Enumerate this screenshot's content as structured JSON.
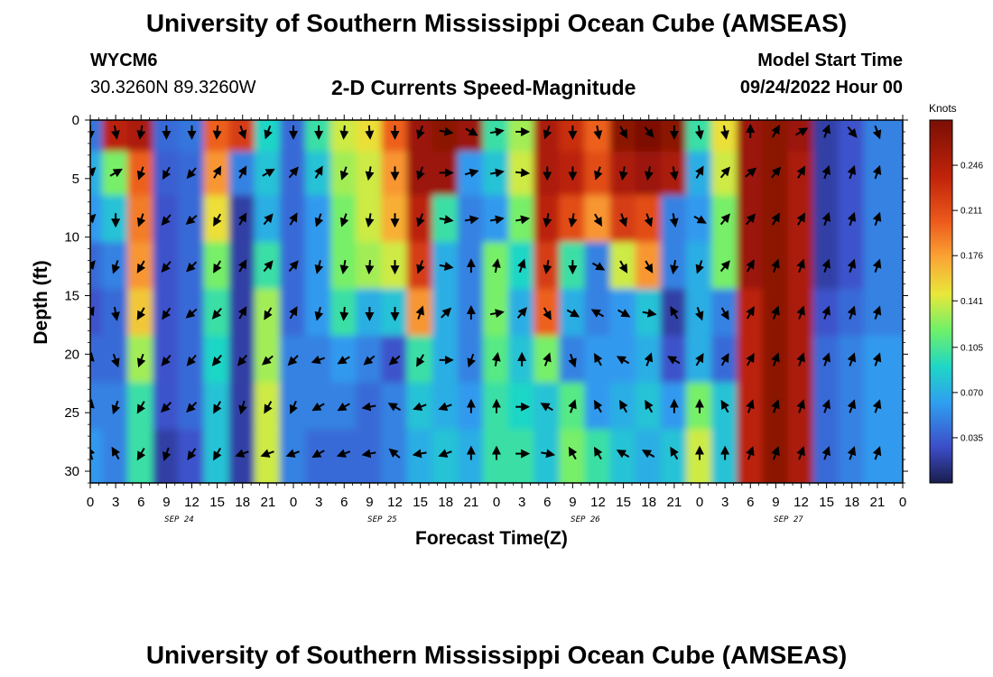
{
  "page": {
    "title_top": "University of Southern Mississippi Ocean Cube (AMSEAS)",
    "title_bottom": "University of Southern Mississippi Ocean Cube (AMSEAS)",
    "station_id": "WYCM6",
    "coords": "30.3260N  89.3260W",
    "model_start_label": "Model Start Time",
    "model_start_value": "09/24/2022 Hour 00"
  },
  "colorbar": {
    "unit": "Knots",
    "ticks": [
      "0.246",
      "0.211",
      "0.176",
      "0.141",
      "0.105",
      "0.070",
      "0.035"
    ],
    "tick_values": [
      0.246,
      0.211,
      0.176,
      0.141,
      0.105,
      0.07,
      0.035
    ],
    "range": [
      0.0,
      0.281
    ]
  },
  "chart_data": {
    "type": "heatmap",
    "title": "2-D Currents Speed-Magnitude",
    "xlabel": "Forecast Time(Z)",
    "ylabel": "Depth (ft)",
    "xlim": [
      0,
      96
    ],
    "ylim": [
      0,
      31
    ],
    "y_inverted": true,
    "x_tick_labels": [
      "0",
      "3",
      "6",
      "9",
      "12",
      "15",
      "18",
      "21",
      "0",
      "3",
      "6",
      "9",
      "12",
      "15",
      "18",
      "21",
      "0",
      "3",
      "6",
      "9",
      "12",
      "15",
      "18",
      "21",
      "0",
      "3",
      "6",
      "9",
      "12",
      "15",
      "18",
      "21",
      "0"
    ],
    "x_tick_hours": [
      0,
      3,
      6,
      9,
      12,
      15,
      18,
      21,
      24,
      27,
      30,
      33,
      36,
      39,
      42,
      45,
      48,
      51,
      54,
      57,
      60,
      63,
      66,
      69,
      72,
      75,
      78,
      81,
      84,
      87,
      90,
      93,
      96
    ],
    "y_tick_labels": [
      "0",
      "5",
      "10",
      "15",
      "20",
      "25",
      "30"
    ],
    "y_tick_values": [
      0,
      5,
      10,
      15,
      20,
      25,
      30
    ],
    "date_labels": [
      {
        "text": "SEP 24",
        "hour": 10.5
      },
      {
        "text": "SEP 25",
        "hour": 34.5
      },
      {
        "text": "SEP 26",
        "hour": 58.5
      },
      {
        "text": "SEP 27",
        "hour": 82.5
      }
    ],
    "depths_ft": [
      1,
      4.5,
      8.5,
      12.5,
      16.5,
      20.5,
      24.5,
      28.5
    ],
    "hours": [
      0,
      3,
      6,
      9,
      12,
      15,
      18,
      21,
      24,
      27,
      30,
      33,
      36,
      39,
      42,
      45,
      48,
      51,
      54,
      57,
      60,
      63,
      66,
      69,
      72,
      75,
      78,
      81,
      84,
      87,
      90,
      93
    ],
    "speed_knots": [
      [
        0.045,
        0.24,
        0.25,
        0.04,
        0.045,
        0.2,
        0.22,
        0.09,
        0.04,
        0.1,
        0.14,
        0.15,
        0.2,
        0.26,
        0.27,
        0.26,
        0.1,
        0.13,
        0.25,
        0.23,
        0.2,
        0.27,
        0.28,
        0.27,
        0.1,
        0.15,
        0.26,
        0.27,
        0.26,
        0.02,
        0.03,
        0.05
      ],
      [
        0.07,
        0.12,
        0.2,
        0.035,
        0.04,
        0.18,
        0.05,
        0.08,
        0.04,
        0.08,
        0.13,
        0.14,
        0.18,
        0.26,
        0.26,
        0.06,
        0.08,
        0.14,
        0.25,
        0.24,
        0.21,
        0.25,
        0.26,
        0.25,
        0.07,
        0.14,
        0.26,
        0.27,
        0.25,
        0.02,
        0.03,
        0.05
      ],
      [
        0.06,
        0.08,
        0.19,
        0.03,
        0.04,
        0.15,
        0.02,
        0.07,
        0.04,
        0.06,
        0.12,
        0.14,
        0.17,
        0.24,
        0.1,
        0.05,
        0.06,
        0.12,
        0.24,
        0.21,
        0.18,
        0.22,
        0.21,
        0.05,
        0.06,
        0.12,
        0.26,
        0.27,
        0.25,
        0.02,
        0.03,
        0.05
      ],
      [
        0.04,
        0.05,
        0.18,
        0.03,
        0.04,
        0.12,
        0.02,
        0.1,
        0.04,
        0.06,
        0.12,
        0.13,
        0.14,
        0.22,
        0.07,
        0.05,
        0.12,
        0.09,
        0.22,
        0.1,
        0.05,
        0.14,
        0.18,
        0.05,
        0.07,
        0.12,
        0.26,
        0.27,
        0.25,
        0.02,
        0.03,
        0.05
      ],
      [
        0.03,
        0.04,
        0.16,
        0.03,
        0.04,
        0.1,
        0.02,
        0.13,
        0.04,
        0.06,
        0.1,
        0.07,
        0.08,
        0.18,
        0.07,
        0.05,
        0.12,
        0.07,
        0.2,
        0.07,
        0.05,
        0.06,
        0.08,
        0.02,
        0.07,
        0.05,
        0.24,
        0.27,
        0.25,
        0.03,
        0.04,
        0.05
      ],
      [
        0.04,
        0.04,
        0.13,
        0.03,
        0.04,
        0.09,
        0.02,
        0.13,
        0.05,
        0.05,
        0.06,
        0.05,
        0.03,
        0.1,
        0.07,
        0.05,
        0.11,
        0.08,
        0.12,
        0.05,
        0.06,
        0.06,
        0.07,
        0.03,
        0.07,
        0.04,
        0.24,
        0.27,
        0.25,
        0.04,
        0.05,
        0.06
      ],
      [
        0.05,
        0.05,
        0.1,
        0.03,
        0.04,
        0.08,
        0.02,
        0.14,
        0.05,
        0.05,
        0.05,
        0.04,
        0.05,
        0.08,
        0.07,
        0.06,
        0.1,
        0.09,
        0.08,
        0.11,
        0.06,
        0.07,
        0.08,
        0.06,
        0.12,
        0.08,
        0.24,
        0.27,
        0.25,
        0.04,
        0.05,
        0.06
      ],
      [
        0.06,
        0.05,
        0.1,
        0.02,
        0.03,
        0.08,
        0.02,
        0.14,
        0.05,
        0.04,
        0.04,
        0.04,
        0.05,
        0.07,
        0.08,
        0.07,
        0.1,
        0.1,
        0.08,
        0.12,
        0.1,
        0.08,
        0.07,
        0.08,
        0.14,
        0.08,
        0.24,
        0.27,
        0.25,
        0.04,
        0.05,
        0.06
      ]
    ],
    "direction_deg": [
      [
        180,
        170,
        190,
        180,
        180,
        185,
        160,
        200,
        180,
        180,
        185,
        175,
        180,
        200,
        100,
        120,
        80,
        90,
        200,
        180,
        170,
        150,
        140,
        180,
        170,
        170,
        0,
        30,
        60,
        20,
        140,
        160
      ],
      [
        45,
        60,
        200,
        210,
        220,
        30,
        30,
        60,
        40,
        30,
        200,
        190,
        180,
        200,
        90,
        75,
        80,
        95,
        180,
        180,
        200,
        190,
        190,
        170,
        30,
        40,
        50,
        40,
        30,
        20,
        20,
        20
      ],
      [
        45,
        180,
        200,
        220,
        230,
        210,
        30,
        40,
        30,
        200,
        200,
        190,
        180,
        200,
        100,
        80,
        80,
        80,
        190,
        190,
        150,
        160,
        160,
        170,
        120,
        40,
        40,
        30,
        30,
        20,
        20,
        20
      ],
      [
        40,
        200,
        210,
        220,
        225,
        210,
        30,
        40,
        40,
        195,
        190,
        185,
        180,
        200,
        100,
        0,
        10,
        20,
        190,
        180,
        120,
        150,
        150,
        190,
        200,
        40,
        30,
        20,
        20,
        20,
        20,
        20
      ],
      [
        30,
        170,
        210,
        215,
        230,
        220,
        30,
        210,
        30,
        195,
        185,
        180,
        180,
        20,
        45,
        0,
        80,
        40,
        150,
        120,
        300,
        120,
        100,
        330,
        160,
        150,
        30,
        20,
        20,
        20,
        20,
        20
      ],
      [
        10,
        160,
        200,
        220,
        220,
        220,
        220,
        230,
        225,
        250,
        240,
        230,
        230,
        210,
        90,
        200,
        10,
        0,
        20,
        160,
        330,
        300,
        20,
        300,
        30,
        30,
        30,
        20,
        20,
        20,
        20,
        20
      ],
      [
        10,
        200,
        210,
        225,
        225,
        210,
        195,
        210,
        205,
        240,
        240,
        260,
        300,
        250,
        250,
        0,
        0,
        90,
        300,
        20,
        330,
        330,
        330,
        0,
        0,
        330,
        20,
        20,
        20,
        20,
        20,
        20
      ],
      [
        340,
        330,
        210,
        200,
        215,
        210,
        250,
        250,
        250,
        240,
        250,
        260,
        310,
        260,
        250,
        0,
        0,
        90,
        100,
        330,
        330,
        300,
        300,
        330,
        0,
        0,
        20,
        20,
        20,
        20,
        20,
        20
      ]
    ]
  }
}
